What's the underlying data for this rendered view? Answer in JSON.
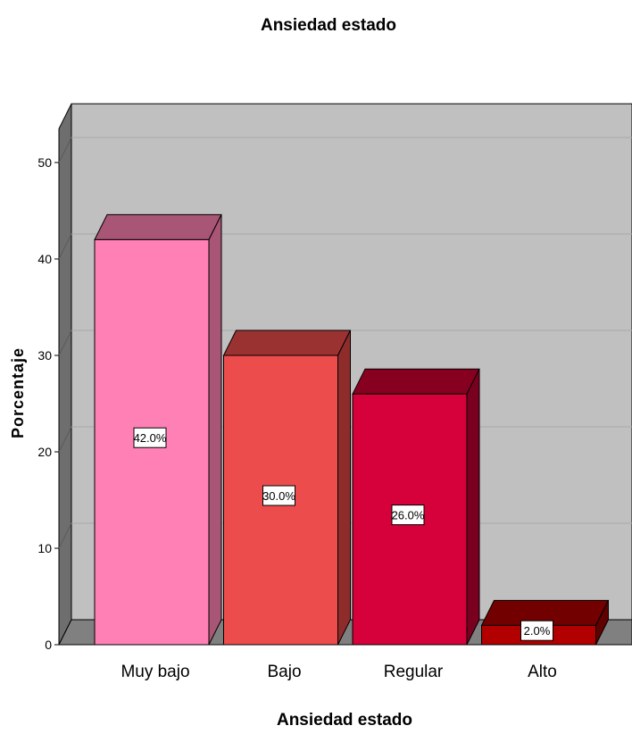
{
  "chart_data": {
    "type": "bar",
    "title": "Ansiedad estado",
    "xlabel": "Ansiedad estado",
    "ylabel": "Porcentaje",
    "categories": [
      "Muy bajo",
      "Bajo",
      "Regular",
      "Alto"
    ],
    "values": [
      42.0,
      30.0,
      26.0,
      2.0
    ],
    "data_labels": [
      "42.0%",
      "30.0%",
      "26.0%",
      "2.0%"
    ],
    "yticks": [
      "0",
      "10",
      "20",
      "30",
      "40",
      "50"
    ],
    "ylim": [
      0,
      53.5
    ],
    "grid": true,
    "legend": "none",
    "three_d": true,
    "colors": {
      "bars": [
        "#ff80b4",
        "#ec4c4c",
        "#d6003a",
        "#b20000"
      ],
      "bar_tops": [
        "#a95575",
        "#9b3232",
        "#880020",
        "#730000"
      ],
      "bar_sides": [
        "#a95575",
        "#8e2c2c",
        "#7a0020",
        "#600000"
      ],
      "plot_back": "#c0c0c0",
      "left_wall": "#6e6e6e",
      "floor": "#808080",
      "gridline": "#a8a8a8"
    }
  }
}
